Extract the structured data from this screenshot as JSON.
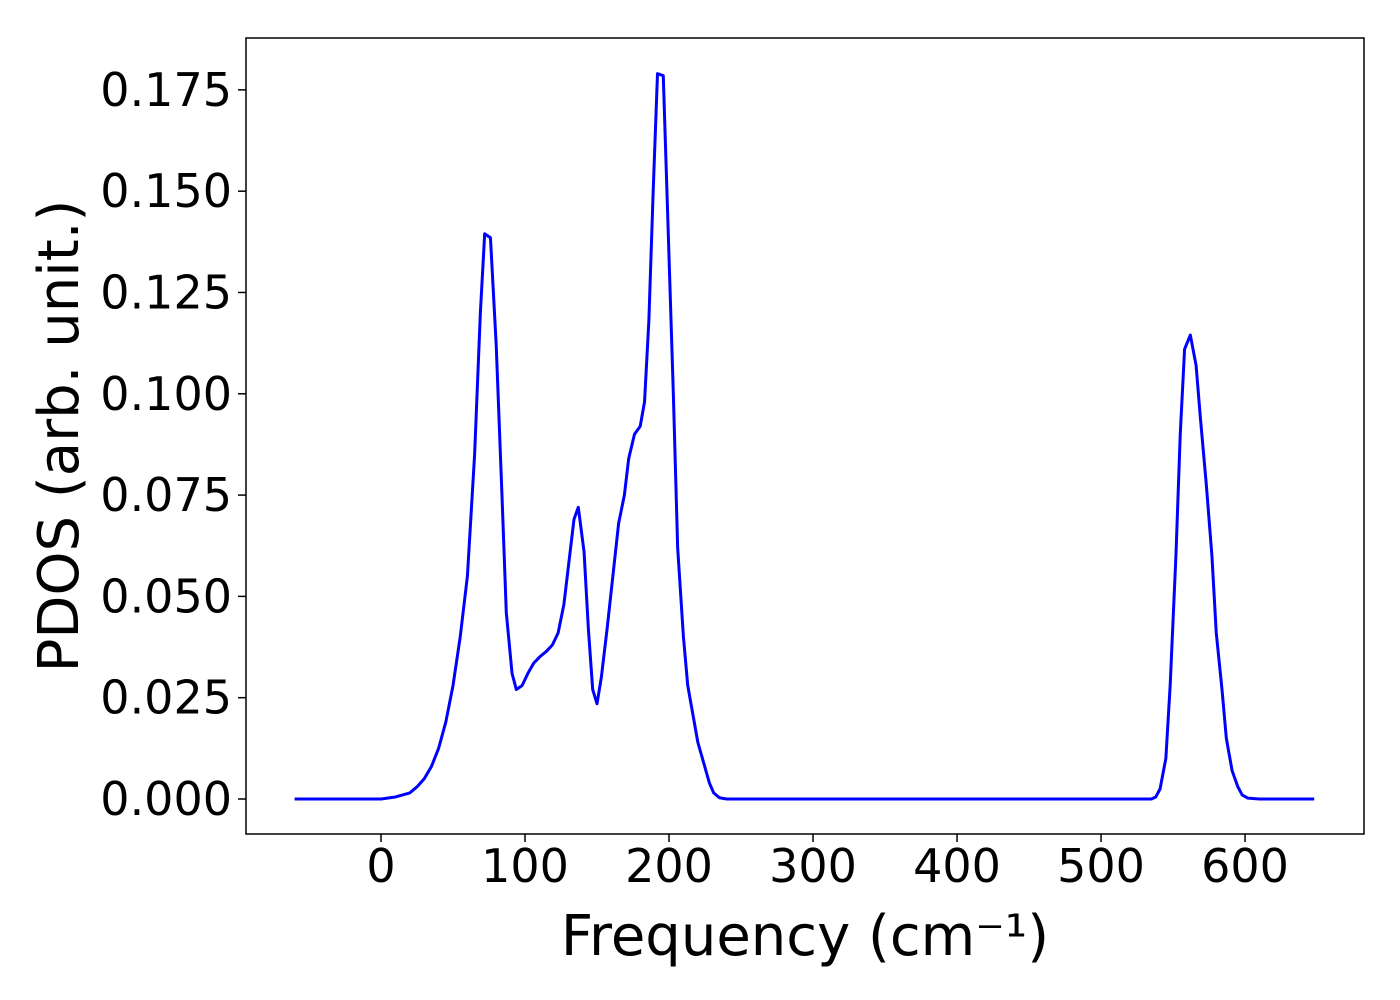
{
  "chart_data": {
    "type": "line",
    "xlabel": "Frequency (cm⁻¹)",
    "ylabel": "PDOS (arb. unit.)",
    "xlim": [
      -93.75,
      682.6
    ],
    "ylim": [
      -0.00864,
      0.1878
    ],
    "xticks": [
      0,
      100,
      200,
      300,
      400,
      500,
      600
    ],
    "yticks": [
      {
        "value": 0,
        "label": "0.000"
      },
      {
        "value": 0.025,
        "label": "0.025"
      },
      {
        "value": 0.05,
        "label": "0.050"
      },
      {
        "value": 0.075,
        "label": "0.075"
      },
      {
        "value": 0.1,
        "label": "0.100"
      },
      {
        "value": 0.125,
        "label": "0.125"
      },
      {
        "value": 0.15,
        "label": "0.150"
      },
      {
        "value": 0.175,
        "label": "0.175"
      }
    ],
    "x": [
      -60,
      0,
      10,
      20,
      25,
      30,
      35,
      40,
      45,
      50,
      55,
      60,
      65,
      69,
      72,
      76,
      80,
      84,
      87,
      91,
      94,
      98,
      102,
      106,
      110,
      115,
      119,
      123,
      127,
      131,
      134,
      137,
      141,
      144,
      147,
      150,
      153,
      157,
      161,
      165,
      169,
      172,
      176,
      180,
      183,
      186,
      189,
      192,
      196,
      199,
      203,
      206,
      210,
      213,
      217,
      220,
      224,
      228,
      231,
      235,
      240,
      300,
      535,
      538,
      541,
      545,
      548,
      552,
      555,
      558,
      562,
      566,
      569,
      573,
      577,
      580,
      584,
      587,
      591,
      595,
      598,
      602,
      610,
      648
    ],
    "series": [
      {
        "color": "#0000ff",
        "values": [
          0,
          0,
          0.0005,
          0.0015,
          0.003,
          0.005,
          0.008,
          0.0125,
          0.019,
          0.028,
          0.04,
          0.055,
          0.085,
          0.12,
          0.1395,
          0.1385,
          0.112,
          0.075,
          0.046,
          0.031,
          0.027,
          0.028,
          0.031,
          0.0335,
          0.035,
          0.0365,
          0.038,
          0.041,
          0.048,
          0.06,
          0.069,
          0.072,
          0.061,
          0.042,
          0.027,
          0.0235,
          0.03,
          0.042,
          0.055,
          0.068,
          0.075,
          0.084,
          0.09,
          0.092,
          0.098,
          0.118,
          0.15,
          0.179,
          0.1785,
          0.145,
          0.1,
          0.062,
          0.04,
          0.028,
          0.02,
          0.014,
          0.009,
          0.004,
          0.0015,
          0.0003,
          0,
          0,
          0,
          0.0005,
          0.0025,
          0.01,
          0.028,
          0.06,
          0.09,
          0.111,
          0.1145,
          0.107,
          0.094,
          0.078,
          0.06,
          0.041,
          0.027,
          0.015,
          0.007,
          0.003,
          0.001,
          0.0002,
          0,
          0
        ]
      }
    ]
  }
}
